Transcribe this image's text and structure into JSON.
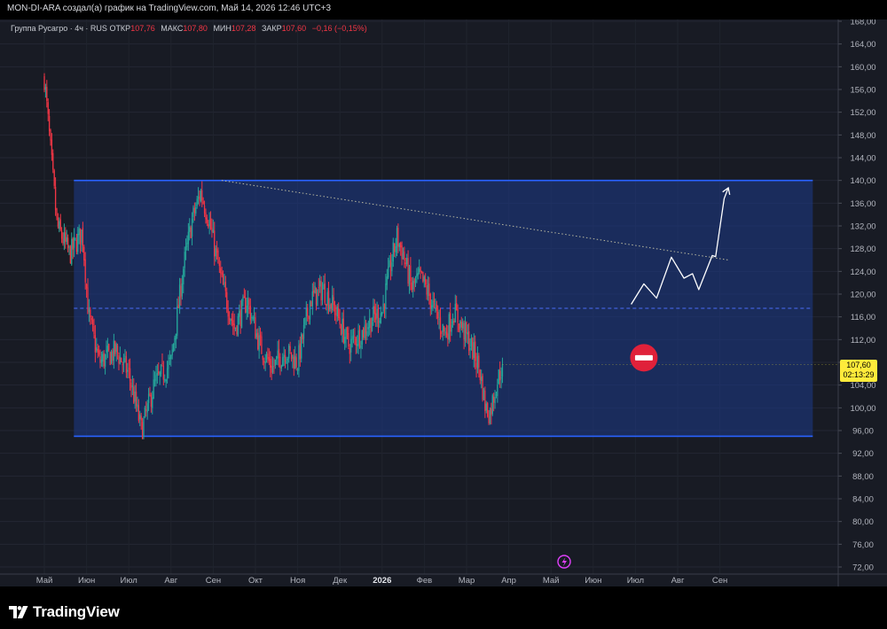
{
  "header": {
    "caption": "MON-DI-ARA создал(а) график на TradingView.com, Май 14, 2026 12:46 UTC+3"
  },
  "legend": {
    "symbol": "Группа Русагро · 4ч · RUS",
    "open_label": "ОТКР",
    "open_value": "107,76",
    "high_label": "МАКС",
    "high_value": "107,80",
    "low_label": "МИН",
    "low_value": "107,28",
    "close_label": "ЗАКР",
    "close_value": "107,60",
    "change": "−0,16 (−0,15%)"
  },
  "price_tag": {
    "price": "107,60",
    "countdown": "02:13:29"
  },
  "footer": {
    "brand": "TradingView"
  },
  "colors": {
    "up": "#26a69a",
    "down": "#f23645",
    "range_fill": "#1e3a8a",
    "range_border": "#2962ff",
    "mid_line": "#4a6cf7",
    "trendline": "#b9b9a0",
    "projection": "#ffffff",
    "background": "#181b24",
    "stop_sign": "#e0213a"
  },
  "icons": {
    "stop_sign": "no-entry-icon",
    "flash": "lightning-icon",
    "logo": "tradingview-logo-icon"
  },
  "chart_data": {
    "type": "candlestick",
    "ylim": [
      72,
      168
    ],
    "y_ticks": [
      "168,00",
      "164,00",
      "160,00",
      "156,00",
      "152,00",
      "148,00",
      "144,00",
      "140,00",
      "136,00",
      "132,00",
      "128,00",
      "124,00",
      "120,00",
      "116,00",
      "112,00",
      "108,00",
      "104,00",
      "100,00",
      "96,00",
      "92,00",
      "88,00",
      "84,00",
      "80,00",
      "76,00",
      "72,00"
    ],
    "x_labels": [
      "Май",
      "Июн",
      "Июл",
      "Авг",
      "Сен",
      "Окт",
      "Ноя",
      "Дек",
      "2026",
      "Фев",
      "Мар",
      "Апр",
      "Май",
      "Июн",
      "Июл",
      "Авг",
      "Сен"
    ],
    "x_labels_bold": [
      "2026"
    ],
    "last_close": 107.6,
    "price_path": [
      {
        "t": 0.0,
        "p": 158
      },
      {
        "t": 0.15,
        "p": 145
      },
      {
        "t": 0.3,
        "p": 132
      },
      {
        "t": 0.6,
        "p": 127
      },
      {
        "t": 0.9,
        "p": 131
      },
      {
        "t": 1.05,
        "p": 116
      },
      {
        "t": 1.3,
        "p": 108
      },
      {
        "t": 1.7,
        "p": 110
      },
      {
        "t": 2.0,
        "p": 106
      },
      {
        "t": 2.3,
        "p": 96
      },
      {
        "t": 2.6,
        "p": 104
      },
      {
        "t": 3.0,
        "p": 108
      },
      {
        "t": 3.3,
        "p": 125
      },
      {
        "t": 3.5,
        "p": 133
      },
      {
        "t": 3.7,
        "p": 138
      },
      {
        "t": 3.9,
        "p": 133
      },
      {
        "t": 4.2,
        "p": 122
      },
      {
        "t": 4.5,
        "p": 114
      },
      {
        "t": 4.8,
        "p": 119
      },
      {
        "t": 5.1,
        "p": 111
      },
      {
        "t": 5.4,
        "p": 107
      },
      {
        "t": 5.7,
        "p": 110
      },
      {
        "t": 6.0,
        "p": 108
      },
      {
        "t": 6.3,
        "p": 119
      },
      {
        "t": 6.6,
        "p": 121
      },
      {
        "t": 6.9,
        "p": 117
      },
      {
        "t": 7.2,
        "p": 111
      },
      {
        "t": 7.5,
        "p": 113
      },
      {
        "t": 7.8,
        "p": 116
      },
      {
        "t": 8.0,
        "p": 117
      },
      {
        "t": 8.2,
        "p": 125
      },
      {
        "t": 8.35,
        "p": 130
      },
      {
        "t": 8.5,
        "p": 127
      },
      {
        "t": 8.7,
        "p": 121
      },
      {
        "t": 8.9,
        "p": 123
      },
      {
        "t": 9.1,
        "p": 120
      },
      {
        "t": 9.3,
        "p": 116
      },
      {
        "t": 9.5,
        "p": 113
      },
      {
        "t": 9.7,
        "p": 117
      },
      {
        "t": 9.9,
        "p": 114
      },
      {
        "t": 10.1,
        "p": 111
      },
      {
        "t": 10.3,
        "p": 107
      },
      {
        "t": 10.45,
        "p": 100
      },
      {
        "t": 10.55,
        "p": 99
      },
      {
        "t": 10.7,
        "p": 104
      },
      {
        "t": 10.85,
        "p": 107.6
      }
    ],
    "annotations": {
      "range_box": {
        "top": 140,
        "bottom": 95,
        "mid": 117.5,
        "x_start": 0.7,
        "x_end": 18.2
      },
      "trendline": {
        "from": {
          "t": 4.2,
          "p": 140
        },
        "to": {
          "t": 16.2,
          "p": 126
        }
      },
      "projection_path": [
        {
          "t": 13.9,
          "p": 118.2
        },
        {
          "t": 14.2,
          "p": 121.8
        },
        {
          "t": 14.5,
          "p": 119.3
        },
        {
          "t": 14.85,
          "p": 126.5
        },
        {
          "t": 15.15,
          "p": 122.8
        },
        {
          "t": 15.35,
          "p": 123.6
        },
        {
          "t": 15.5,
          "p": 120.8
        },
        {
          "t": 15.82,
          "p": 126.8
        },
        {
          "t": 15.9,
          "p": 126.6
        },
        {
          "t": 16.1,
          "p": 136.8
        },
        {
          "t": 16.2,
          "p": 138.7
        }
      ],
      "stop_sign": {
        "t": 14.2,
        "p": 108.8
      }
    }
  }
}
